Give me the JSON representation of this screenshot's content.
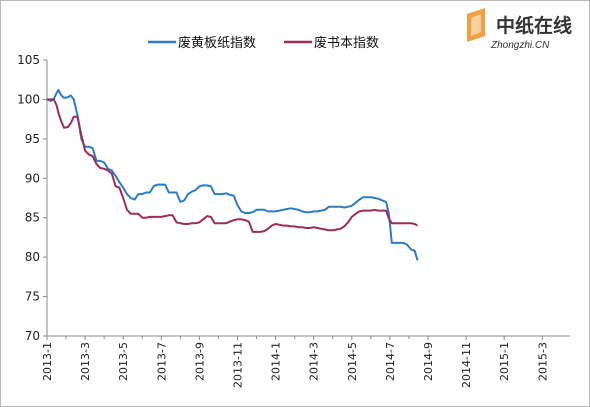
{
  "brand": {
    "name_cn": "中纸在线",
    "name_en": "Zhongzhi.CN"
  },
  "chart_data": {
    "type": "line",
    "title": "",
    "xlabel": "",
    "ylabel": "",
    "ylim": [
      70,
      105
    ],
    "yticks": [
      70,
      75,
      80,
      85,
      90,
      95,
      100,
      105
    ],
    "xticks": [
      "2013-1",
      "2013-3",
      "2013-5",
      "2013-7",
      "2013-9",
      "2013-11",
      "2014-1",
      "2014-3",
      "2014-5",
      "2014-7",
      "2014-9",
      "2014-11",
      "2015-1",
      "2015-3"
    ],
    "legend_position": "top",
    "grid": false,
    "series": [
      {
        "name": "废黄板纸指数",
        "color": "#2e7bc4",
        "points": [
          [
            0,
            100
          ],
          [
            0.2,
            99.8
          ],
          [
            0.35,
            100
          ],
          [
            0.5,
            100.8
          ],
          [
            0.6,
            101.2
          ],
          [
            0.75,
            100.5
          ],
          [
            0.9,
            100.2
          ],
          [
            1.1,
            100.3
          ],
          [
            1.25,
            100.5
          ],
          [
            1.4,
            100
          ],
          [
            1.6,
            98
          ],
          [
            1.8,
            95
          ],
          [
            2.0,
            94
          ],
          [
            2.2,
            94
          ],
          [
            2.4,
            93.8
          ],
          [
            2.6,
            92.2
          ],
          [
            2.8,
            92.2
          ],
          [
            3.0,
            92
          ],
          [
            3.2,
            91.2
          ],
          [
            3.4,
            91
          ],
          [
            3.6,
            90.3
          ],
          [
            3.8,
            89.5
          ],
          [
            4.0,
            88.8
          ],
          [
            4.2,
            88
          ],
          [
            4.4,
            87.5
          ],
          [
            4.6,
            87.3
          ],
          [
            4.8,
            88
          ],
          [
            5.0,
            88
          ],
          [
            5.2,
            88.2
          ],
          [
            5.4,
            88.2
          ],
          [
            5.6,
            89
          ],
          [
            5.8,
            89.2
          ],
          [
            6.0,
            89.2
          ],
          [
            6.2,
            89.2
          ],
          [
            6.4,
            88.2
          ],
          [
            6.6,
            88.2
          ],
          [
            6.8,
            88.2
          ],
          [
            7.0,
            87
          ],
          [
            7.2,
            87.2
          ],
          [
            7.4,
            88
          ],
          [
            7.6,
            88.3
          ],
          [
            7.8,
            88.5
          ],
          [
            8.0,
            89
          ],
          [
            8.2,
            89.1
          ],
          [
            8.4,
            89.1
          ],
          [
            8.6,
            89
          ],
          [
            8.8,
            88
          ],
          [
            9.0,
            88
          ],
          [
            9.2,
            88
          ],
          [
            9.4,
            88.1
          ],
          [
            9.6,
            87.9
          ],
          [
            9.8,
            87.8
          ],
          [
            10.0,
            86.6
          ],
          [
            10.2,
            85.8
          ],
          [
            10.4,
            85.6
          ],
          [
            10.6,
            85.6
          ],
          [
            10.8,
            85.7
          ],
          [
            11.0,
            86
          ],
          [
            11.2,
            86
          ],
          [
            11.4,
            86
          ],
          [
            11.6,
            85.8
          ],
          [
            11.8,
            85.8
          ],
          [
            12.0,
            85.8
          ],
          [
            12.2,
            85.9
          ],
          [
            12.4,
            86
          ],
          [
            12.6,
            86.1
          ],
          [
            12.8,
            86.2
          ],
          [
            13.0,
            86.1
          ],
          [
            13.2,
            86
          ],
          [
            13.4,
            85.8
          ],
          [
            13.6,
            85.7
          ],
          [
            13.8,
            85.7
          ],
          [
            14.0,
            85.8
          ],
          [
            14.2,
            85.8
          ],
          [
            14.4,
            85.9
          ],
          [
            14.6,
            86
          ],
          [
            14.8,
            86.4
          ],
          [
            15.0,
            86.4
          ],
          [
            15.2,
            86.4
          ],
          [
            15.4,
            86.4
          ],
          [
            15.6,
            86.3
          ],
          [
            15.8,
            86.4
          ],
          [
            16.0,
            86.5
          ],
          [
            16.2,
            86.9
          ],
          [
            16.4,
            87.3
          ],
          [
            16.6,
            87.6
          ],
          [
            16.8,
            87.6
          ],
          [
            17.0,
            87.6
          ],
          [
            17.2,
            87.5
          ],
          [
            17.4,
            87.4
          ],
          [
            17.6,
            87.2
          ],
          [
            17.8,
            87
          ],
          [
            17.95,
            85.5
          ],
          [
            18.1,
            81.8
          ],
          [
            18.3,
            81.8
          ],
          [
            18.5,
            81.8
          ],
          [
            18.7,
            81.8
          ],
          [
            18.9,
            81.6
          ],
          [
            19.1,
            81
          ],
          [
            19.3,
            80.8
          ],
          [
            19.45,
            79.6
          ]
        ]
      },
      {
        "name": "废书本指数",
        "color": "#9b2d58",
        "points": [
          [
            0,
            100
          ],
          [
            0.2,
            100
          ],
          [
            0.35,
            100
          ],
          [
            0.5,
            99.3
          ],
          [
            0.6,
            98.3
          ],
          [
            0.75,
            97.2
          ],
          [
            0.9,
            96.4
          ],
          [
            1.1,
            96.5
          ],
          [
            1.25,
            97
          ],
          [
            1.4,
            97.8
          ],
          [
            1.6,
            97.8
          ],
          [
            1.8,
            95.5
          ],
          [
            2.0,
            93.5
          ],
          [
            2.2,
            93
          ],
          [
            2.4,
            92.8
          ],
          [
            2.6,
            91.8
          ],
          [
            2.8,
            91.3
          ],
          [
            3.0,
            91.2
          ],
          [
            3.2,
            91
          ],
          [
            3.4,
            90.6
          ],
          [
            3.6,
            89
          ],
          [
            3.8,
            88.8
          ],
          [
            4.0,
            87.5
          ],
          [
            4.2,
            86
          ],
          [
            4.4,
            85.5
          ],
          [
            4.6,
            85.5
          ],
          [
            4.8,
            85.5
          ],
          [
            5.0,
            85
          ],
          [
            5.2,
            85
          ],
          [
            5.4,
            85.1
          ],
          [
            5.6,
            85.1
          ],
          [
            5.8,
            85.1
          ],
          [
            6.0,
            85.1
          ],
          [
            6.2,
            85.2
          ],
          [
            6.4,
            85.3
          ],
          [
            6.6,
            85.3
          ],
          [
            6.8,
            84.4
          ],
          [
            7.0,
            84.3
          ],
          [
            7.2,
            84.2
          ],
          [
            7.4,
            84.2
          ],
          [
            7.6,
            84.3
          ],
          [
            7.8,
            84.3
          ],
          [
            8.0,
            84.4
          ],
          [
            8.2,
            84.8
          ],
          [
            8.4,
            85.2
          ],
          [
            8.6,
            85.1
          ],
          [
            8.8,
            84.3
          ],
          [
            9.0,
            84.3
          ],
          [
            9.2,
            84.3
          ],
          [
            9.4,
            84.3
          ],
          [
            9.6,
            84.5
          ],
          [
            9.8,
            84.7
          ],
          [
            10.0,
            84.8
          ],
          [
            10.2,
            84.8
          ],
          [
            10.4,
            84.7
          ],
          [
            10.6,
            84.5
          ],
          [
            10.8,
            83.2
          ],
          [
            11.0,
            83.2
          ],
          [
            11.2,
            83.2
          ],
          [
            11.4,
            83.3
          ],
          [
            11.6,
            83.6
          ],
          [
            11.8,
            84
          ],
          [
            12.0,
            84.2
          ],
          [
            12.2,
            84.1
          ],
          [
            12.4,
            84
          ],
          [
            12.6,
            84
          ],
          [
            12.8,
            83.9
          ],
          [
            13.0,
            83.9
          ],
          [
            13.2,
            83.8
          ],
          [
            13.4,
            83.8
          ],
          [
            13.6,
            83.7
          ],
          [
            13.8,
            83.7
          ],
          [
            14.0,
            83.8
          ],
          [
            14.2,
            83.7
          ],
          [
            14.4,
            83.6
          ],
          [
            14.6,
            83.5
          ],
          [
            14.8,
            83.4
          ],
          [
            15.0,
            83.4
          ],
          [
            15.2,
            83.5
          ],
          [
            15.4,
            83.6
          ],
          [
            15.6,
            83.9
          ],
          [
            15.8,
            84.4
          ],
          [
            16.0,
            85.1
          ],
          [
            16.2,
            85.5
          ],
          [
            16.4,
            85.8
          ],
          [
            16.6,
            85.9
          ],
          [
            16.8,
            85.9
          ],
          [
            17.0,
            85.9
          ],
          [
            17.2,
            86
          ],
          [
            17.4,
            85.9
          ],
          [
            17.6,
            85.9
          ],
          [
            17.8,
            85.9
          ],
          [
            17.95,
            84.9
          ],
          [
            18.1,
            84.3
          ],
          [
            18.3,
            84.3
          ],
          [
            18.5,
            84.3
          ],
          [
            18.7,
            84.3
          ],
          [
            18.9,
            84.3
          ],
          [
            19.1,
            84.3
          ],
          [
            19.3,
            84.2
          ],
          [
            19.45,
            84
          ]
        ]
      }
    ]
  }
}
